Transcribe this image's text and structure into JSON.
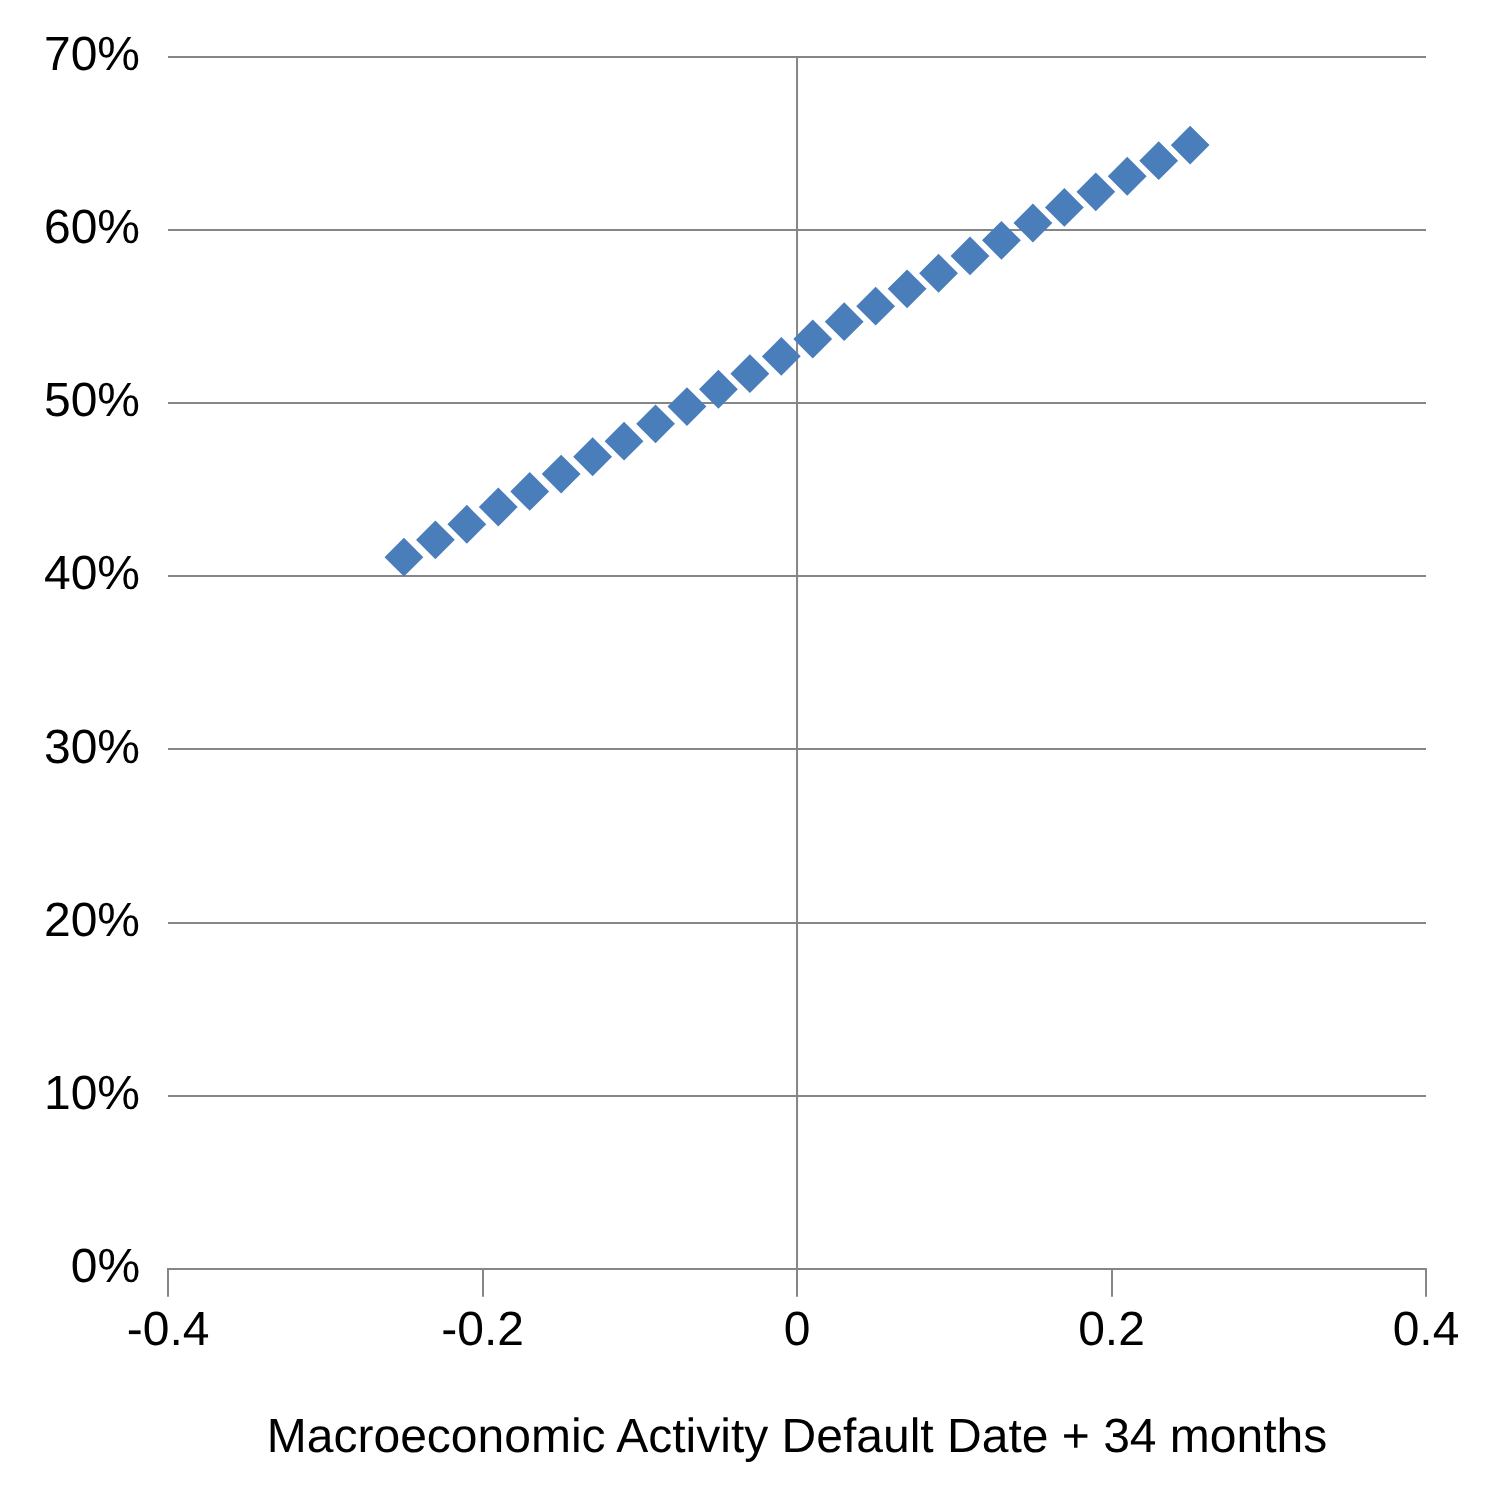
{
  "chart_data": {
    "type": "scatter",
    "xlabel": "Macroeconomic Activity Default Date + 34 months",
    "x": [
      -0.25,
      -0.23,
      -0.21,
      -0.19,
      -0.17,
      -0.15,
      -0.13,
      -0.11,
      -0.09,
      -0.07,
      -0.05,
      -0.03,
      -0.01,
      0.01,
      0.03,
      0.05,
      0.07,
      0.09,
      0.11,
      0.13,
      0.15,
      0.17,
      0.19,
      0.21,
      0.23,
      0.25
    ],
    "series": [
      {
        "color": "#4a7ebb",
        "values": [
          41.1,
          42.1,
          43.0,
          44.0,
          44.9,
          45.9,
          46.9,
          47.8,
          48.8,
          49.8,
          50.8,
          51.7,
          52.7,
          53.7,
          54.7,
          55.6,
          56.6,
          57.5,
          58.5,
          59.4,
          60.4,
          61.3,
          62.2,
          63.1,
          64.0,
          64.9
        ]
      }
    ],
    "xlim": [
      -0.4,
      0.4
    ],
    "xticks": [
      -0.4,
      -0.2,
      0,
      0.2,
      0.4
    ],
    "ylim": [
      0,
      70
    ],
    "yticks": [
      {
        "value": 0,
        "label": "0%"
      },
      {
        "value": 10,
        "label": "10%"
      },
      {
        "value": 20,
        "label": "20%"
      },
      {
        "value": 30,
        "label": "30%"
      },
      {
        "value": 40,
        "label": "40%"
      },
      {
        "value": 50,
        "label": "50%"
      },
      {
        "value": 60,
        "label": "60%"
      },
      {
        "value": 70,
        "label": "70%"
      }
    ],
    "ref_lines": [
      {
        "axis": "x",
        "value": 0,
        "color": "#868686"
      }
    ],
    "grid": "y",
    "legend": false,
    "marker": "diamond"
  }
}
